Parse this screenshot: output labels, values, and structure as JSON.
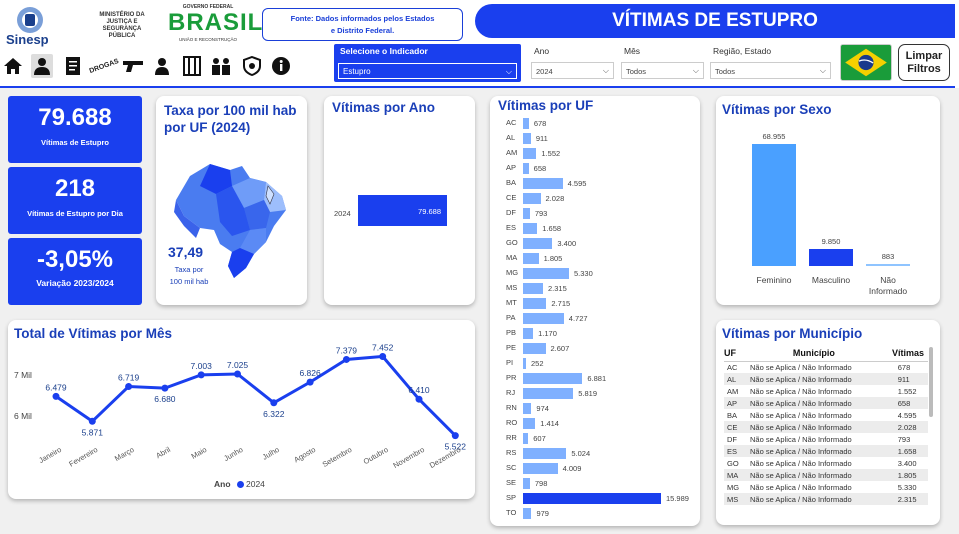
{
  "header": {
    "logo_text": "Sinesp",
    "ministerio": "MINISTÉRIO DA JUSTIÇA E SEGURANÇA PÚBLICA",
    "gov_top": "GOVERNO FEDERAL",
    "gov_brasil": "BRASIL",
    "gov_sub": "UNIÃO E RECONSTRUÇÃO",
    "fonte_line1": "Fonte: Dados informados pelos Estados",
    "fonte_line2": "e Distrito Federal.",
    "title": "VÍTIMAS DE ESTUPRO"
  },
  "nav": {
    "icons": [
      "home-icon",
      "person-icon",
      "document-icon",
      "drogas-icon",
      "gun-icon",
      "detainee-icon",
      "prison-icon",
      "people-icon",
      "badge-icon",
      "info-icon"
    ],
    "drogas_label": "DROGAS"
  },
  "filters": {
    "indicator_label": "Selecione o Indicador",
    "indicator_value": "Estupro",
    "ano_label": "Ano",
    "ano_value": "2024",
    "mes_label": "Mês",
    "mes_value": "Todos",
    "regiao_label": "Região, Estado",
    "regiao_value": "Todos",
    "limpar_line1": "Limpar",
    "limpar_line2": "Filtros"
  },
  "kpis": {
    "total_value": "79.688",
    "total_label": "Vítimas de Estupro",
    "dia_value": "218",
    "dia_label": "Vítimas de Estupro por Dia",
    "variacao_value": "-3,05%",
    "variacao_label": "Variação 2023/2024"
  },
  "taxa": {
    "title_line1": "Taxa por 100 mil hab",
    "title_line2": "por UF (2024)",
    "value": "37,49",
    "label_line1": "Taxa por",
    "label_line2": "100 mil hab"
  },
  "ano_chart": {
    "title": "Vítimas por Ano",
    "category": "2024",
    "value_label": "79.688"
  },
  "uf_chart": {
    "title": "Vítimas por UF",
    "rows": [
      {
        "uf": "AC",
        "label": "678"
      },
      {
        "uf": "AL",
        "label": "911"
      },
      {
        "uf": "AM",
        "label": "1.552"
      },
      {
        "uf": "AP",
        "label": "658"
      },
      {
        "uf": "BA",
        "label": "4.595"
      },
      {
        "uf": "CE",
        "label": "2.028"
      },
      {
        "uf": "DF",
        "label": "793"
      },
      {
        "uf": "ES",
        "label": "1.658"
      },
      {
        "uf": "GO",
        "label": "3.400"
      },
      {
        "uf": "MA",
        "label": "1.805"
      },
      {
        "uf": "MG",
        "label": "5.330"
      },
      {
        "uf": "MS",
        "label": "2.315"
      },
      {
        "uf": "MT",
        "label": "2.715"
      },
      {
        "uf": "PA",
        "label": "4.727"
      },
      {
        "uf": "PB",
        "label": "1.170"
      },
      {
        "uf": "PE",
        "label": "2.607"
      },
      {
        "uf": "PI",
        "label": "252"
      },
      {
        "uf": "PR",
        "label": "6.881"
      },
      {
        "uf": "RJ",
        "label": "5.819"
      },
      {
        "uf": "RN",
        "label": "974"
      },
      {
        "uf": "RO",
        "label": "1.414"
      },
      {
        "uf": "RR",
        "label": "607"
      },
      {
        "uf": "RS",
        "label": "5.024"
      },
      {
        "uf": "SC",
        "label": "4.009"
      },
      {
        "uf": "SE",
        "label": "798"
      },
      {
        "uf": "SP",
        "label": "15.989"
      },
      {
        "uf": "TO",
        "label": "979"
      }
    ]
  },
  "sexo": {
    "title": "Vítimas por Sexo",
    "bars": [
      {
        "label": "Feminino",
        "value_label": "68.955",
        "color": "#4aa0ff"
      },
      {
        "label": "Masculino",
        "value_label": "9.850",
        "color": "#1a3fee"
      },
      {
        "label": "Não Informado",
        "value_label": "883",
        "color": "#8fc4ff"
      }
    ]
  },
  "mes": {
    "title": "Total de Vítimas por Mês",
    "y_ticks": [
      "7 Mil",
      "6 Mil"
    ],
    "months": [
      "Janeiro",
      "Fevereiro",
      "Março",
      "Abril",
      "Maio",
      "Junho",
      "Julho",
      "Agosto",
      "Setembro",
      "Outubro",
      "Novembro",
      "Dezembro"
    ],
    "labels": [
      "6.479",
      "5.871",
      "6.719",
      "6.680",
      "7.003",
      "7.025",
      "6.322",
      "6.826",
      "7.379",
      "7.452",
      "6.410",
      "5.522"
    ],
    "legend_title": "Ano",
    "legend_item": "2024"
  },
  "municipio": {
    "title": "Vítimas por Município",
    "headers": [
      "UF",
      "Município",
      "Vítimas"
    ],
    "rows": [
      [
        "AC",
        "Não se Aplica / Não Informado",
        "678"
      ],
      [
        "AL",
        "Não se Aplica / Não Informado",
        "911"
      ],
      [
        "AM",
        "Não se Aplica / Não Informado",
        "1.552"
      ],
      [
        "AP",
        "Não se Aplica / Não Informado",
        "658"
      ],
      [
        "BA",
        "Não se Aplica / Não Informado",
        "4.595"
      ],
      [
        "CE",
        "Não se Aplica / Não Informado",
        "2.028"
      ],
      [
        "DF",
        "Não se Aplica / Não Informado",
        "793"
      ],
      [
        "ES",
        "Não se Aplica / Não Informado",
        "1.658"
      ],
      [
        "GO",
        "Não se Aplica / Não Informado",
        "3.400"
      ],
      [
        "MA",
        "Não se Aplica / Não Informado",
        "1.805"
      ],
      [
        "MG",
        "Não se Aplica / Não Informado",
        "5.330"
      ],
      [
        "MS",
        "Não se Aplica / Não Informado",
        "2.315"
      ]
    ]
  },
  "colors": {
    "brand": "#1a3fee",
    "title": "#1a3fb8",
    "uf_bar": "#7fb0ff"
  },
  "chart_data": [
    {
      "type": "bar",
      "title": "Vítimas por Ano",
      "categories": [
        "2024"
      ],
      "values": [
        79688
      ]
    },
    {
      "type": "bar",
      "title": "Vítimas por UF",
      "categories": [
        "AC",
        "AL",
        "AM",
        "AP",
        "BA",
        "CE",
        "DF",
        "ES",
        "GO",
        "MA",
        "MG",
        "MS",
        "MT",
        "PA",
        "PB",
        "PE",
        "PI",
        "PR",
        "RJ",
        "RN",
        "RO",
        "RR",
        "RS",
        "SC",
        "SE",
        "SP",
        "TO"
      ],
      "values": [
        678,
        911,
        1552,
        658,
        4595,
        2028,
        793,
        1658,
        3400,
        1805,
        5330,
        2315,
        2715,
        4727,
        1170,
        2607,
        252,
        6881,
        5819,
        974,
        1414,
        607,
        5024,
        4009,
        798,
        15989,
        979
      ]
    },
    {
      "type": "bar",
      "title": "Vítimas por Sexo",
      "categories": [
        "Feminino",
        "Masculino",
        "Não Informado"
      ],
      "values": [
        68955,
        9850,
        883
      ]
    },
    {
      "type": "line",
      "title": "Total de Vítimas por Mês",
      "x": [
        "Janeiro",
        "Fevereiro",
        "Março",
        "Abril",
        "Maio",
        "Junho",
        "Julho",
        "Agosto",
        "Setembro",
        "Outubro",
        "Novembro",
        "Dezembro"
      ],
      "series": [
        {
          "name": "2024",
          "values": [
            6479,
            5871,
            6719,
            6680,
            7003,
            7025,
            6322,
            6826,
            7379,
            7452,
            6410,
            5522
          ]
        }
      ],
      "y_ticks": [
        "7 Mil",
        "6 Mil"
      ],
      "legend": "bottom"
    }
  ]
}
